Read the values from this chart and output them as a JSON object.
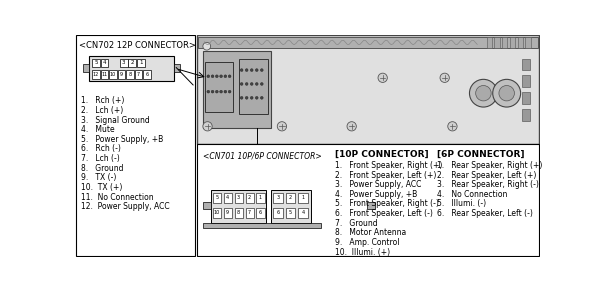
{
  "cn702_title": "<CN702 12P CONNECTOR>",
  "cn702_list": [
    "1.   Rch (+)",
    "2.   Lch (+)",
    "3.   Signal Ground",
    "4.   Mute",
    "5.   Power Supply, +B",
    "6.   Rch (-)",
    "7.   Lch (-)",
    "8.   Ground",
    "9.   TX (-)",
    "10.  TX (+)",
    "11.  No Connection",
    "12.  Power Supply, ACC"
  ],
  "cn701_label": "<CN701 10P/6P CONNECTOR>",
  "10p_title": "[10P CONNECTOR]",
  "10p_list": [
    "1.   Front Speaker, Right (+)",
    "2.   Front Speaker, Left (+)",
    "3.   Power Supply, ACC",
    "4.   Power Supply, +B",
    "5.   Front Speaker, Right (-)",
    "6.   Front Speaker, Left (-)",
    "7.   Ground",
    "8.   Motor Antenna",
    "9.   Amp. Control",
    "10.  Illumi. (+)"
  ],
  "6p_title": "[6P CONNECTOR]",
  "6p_list": [
    "1.   Rear Speaker, Right (+)",
    "2.   Rear Speaker, Left (+)",
    "3.   Rear Speaker, Right (-)",
    "4.   No Connection",
    "5.   Illumi. (-)",
    "6.   Rear Speaker, Left (-)"
  ],
  "hu_color": "#c8c8c8",
  "hu_border": "#444444",
  "white": "#ffffff",
  "light_gray": "#e0e0e0",
  "mid_gray": "#b0b0b0",
  "dark_gray": "#666666"
}
